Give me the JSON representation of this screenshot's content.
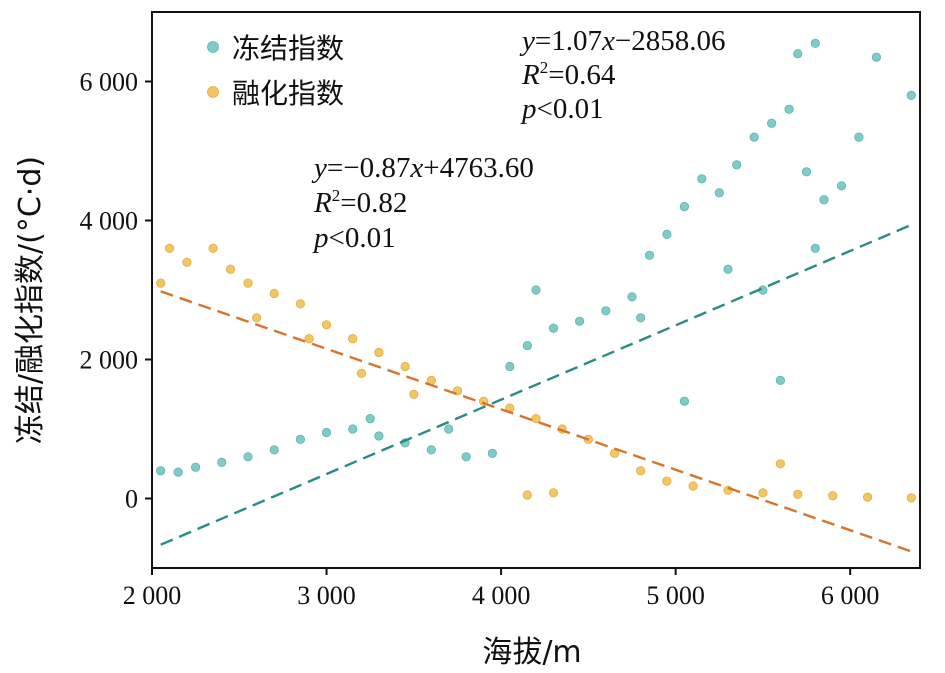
{
  "chart_data": {
    "type": "scatter",
    "xlabel": "海拔/m",
    "ylabel": "冻结/融化指数/(°C·d)",
    "xlim": [
      2000,
      6400
    ],
    "ylim": [
      -1000,
      7000
    ],
    "x_ticks": [
      2000,
      3000,
      4000,
      5000,
      6000
    ],
    "x_tick_labels": [
      "2 000",
      "3 000",
      "4 000",
      "5 000",
      "6 000"
    ],
    "y_ticks": [
      0,
      2000,
      4000,
      6000
    ],
    "y_tick_labels": [
      "0",
      "2 000",
      "4 000",
      "6 000"
    ],
    "grid": false,
    "legend_position": "top-left",
    "series": [
      {
        "name": "冻结指数",
        "color": "#7fcbc7",
        "edge_color": "#5fb3af",
        "fit": {
          "slope": 1.07,
          "intercept": -2858.06,
          "equation": "y=1.07x−2858.06",
          "eq_y": "y",
          "eq_body": "=1.07",
          "eq_x": "x",
          "eq_tail": "−2858.06",
          "r2_letter": "R",
          "r2_sup": "2",
          "r2_value": "=0.64",
          "p_letter": "p",
          "p_value": "<0.01",
          "line_color": "#2a8a84"
        },
        "points": [
          [
            2050,
            400
          ],
          [
            2150,
            380
          ],
          [
            2250,
            450
          ],
          [
            2400,
            520
          ],
          [
            2550,
            600
          ],
          [
            2700,
            700
          ],
          [
            2850,
            850
          ],
          [
            3000,
            950
          ],
          [
            3150,
            1000
          ],
          [
            3300,
            900
          ],
          [
            3450,
            800
          ],
          [
            3600,
            700
          ],
          [
            3800,
            600
          ],
          [
            3950,
            650
          ],
          [
            4050,
            1900
          ],
          [
            4150,
            2200
          ],
          [
            4300,
            2450
          ],
          [
            4450,
            2550
          ],
          [
            4600,
            2700
          ],
          [
            4750,
            2900
          ],
          [
            4850,
            3500
          ],
          [
            4950,
            3800
          ],
          [
            5050,
            4200
          ],
          [
            5150,
            4600
          ],
          [
            5250,
            4400
          ],
          [
            5350,
            4800
          ],
          [
            5450,
            5200
          ],
          [
            5550,
            5400
          ],
          [
            5650,
            5600
          ],
          [
            5750,
            4700
          ],
          [
            5850,
            4300
          ],
          [
            5950,
            4500
          ],
          [
            6050,
            5200
          ],
          [
            6150,
            6350
          ],
          [
            6350,
            5800
          ],
          [
            5700,
            6400
          ],
          [
            5800,
            6550
          ],
          [
            5600,
            1700
          ],
          [
            4200,
            3000
          ],
          [
            5050,
            1400
          ],
          [
            3250,
            1150
          ],
          [
            3700,
            1000
          ],
          [
            4800,
            2600
          ],
          [
            5300,
            3300
          ],
          [
            5500,
            3000
          ],
          [
            5800,
            3600
          ]
        ]
      },
      {
        "name": "融化指数",
        "color": "#f3c563",
        "edge_color": "#e0ad44",
        "fit": {
          "slope": -0.87,
          "intercept": 4763.6,
          "equation": "y=−0.87x+4763.60",
          "eq_y": "y",
          "eq_body": "=−0.87",
          "eq_x": "x",
          "eq_tail": "+4763.60",
          "r2_letter": "R",
          "r2_sup": "2",
          "r2_value": "=0.82",
          "p_letter": "p",
          "p_value": "<0.01",
          "line_color": "#d9732a"
        },
        "points": [
          [
            2050,
            3100
          ],
          [
            2100,
            3600
          ],
          [
            2200,
            3400
          ],
          [
            2350,
            3600
          ],
          [
            2450,
            3300
          ],
          [
            2550,
            3100
          ],
          [
            2700,
            2950
          ],
          [
            2850,
            2800
          ],
          [
            3000,
            2500
          ],
          [
            3150,
            2300
          ],
          [
            3300,
            2100
          ],
          [
            3450,
            1900
          ],
          [
            3600,
            1700
          ],
          [
            3750,
            1550
          ],
          [
            3900,
            1400
          ],
          [
            4050,
            1300
          ],
          [
            4200,
            1150
          ],
          [
            4350,
            1000
          ],
          [
            4500,
            850
          ],
          [
            4650,
            650
          ],
          [
            4800,
            400
          ],
          [
            4950,
            250
          ],
          [
            5100,
            180
          ],
          [
            5300,
            120
          ],
          [
            5500,
            80
          ],
          [
            5700,
            60
          ],
          [
            5900,
            40
          ],
          [
            6100,
            20
          ],
          [
            6350,
            10
          ],
          [
            4150,
            50
          ],
          [
            4300,
            80
          ],
          [
            5600,
            500
          ],
          [
            2600,
            2600
          ],
          [
            2900,
            2300
          ],
          [
            3200,
            1800
          ],
          [
            3500,
            1500
          ]
        ]
      }
    ]
  }
}
